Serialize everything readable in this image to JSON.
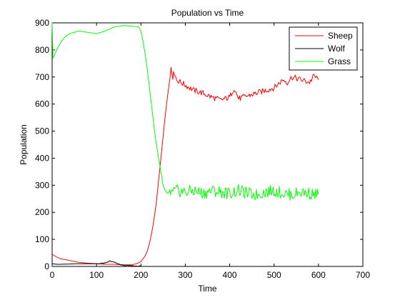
{
  "chart_data": {
    "type": "line",
    "title": "Population vs Time",
    "xlabel": "Time",
    "ylabel": "Population",
    "xlim": [
      0,
      700
    ],
    "ylim": [
      0,
      900
    ],
    "xticks": [
      0,
      100,
      200,
      300,
      400,
      500,
      600,
      700
    ],
    "yticks": [
      0,
      100,
      200,
      300,
      400,
      500,
      600,
      700,
      800,
      900
    ],
    "grid": false,
    "legend_position": "top-right",
    "series": [
      {
        "name": "Sheep",
        "color": "#ff0000",
        "x": [
          0,
          10,
          20,
          40,
          60,
          80,
          100,
          120,
          140,
          160,
          180,
          190,
          200,
          210,
          215,
          220,
          225,
          230,
          235,
          240,
          245,
          250,
          255,
          260,
          265,
          268,
          272,
          275,
          280,
          290,
          300,
          320,
          340,
          360,
          380,
          400,
          410,
          420,
          440,
          460,
          480,
          500,
          520,
          530,
          540,
          560,
          580,
          590,
          600
        ],
        "y": [
          45,
          35,
          28,
          22,
          15,
          12,
          10,
          8,
          8,
          6,
          6,
          10,
          18,
          40,
          60,
          90,
          130,
          180,
          240,
          320,
          400,
          480,
          560,
          630,
          690,
          735,
          700,
          720,
          690,
          680,
          670,
          650,
          640,
          625,
          615,
          625,
          660,
          620,
          630,
          640,
          650,
          660,
          690,
          680,
          700,
          690,
          680,
          705,
          690
        ]
      },
      {
        "name": "Wolf",
        "color": "#000000",
        "x": [
          0,
          10,
          20,
          40,
          60,
          80,
          100,
          120,
          130,
          140,
          150,
          160,
          170,
          180,
          190,
          200
        ],
        "y": [
          10,
          8,
          8,
          9,
          10,
          10,
          10,
          12,
          20,
          15,
          8,
          4,
          3,
          2,
          1,
          0
        ]
      },
      {
        "name": "Grass",
        "color": "#00ff00",
        "x": [
          0,
          2,
          5,
          10,
          20,
          30,
          40,
          60,
          80,
          100,
          120,
          140,
          160,
          180,
          195,
          200,
          205,
          210,
          215,
          220,
          225,
          230,
          235,
          240,
          245,
          250,
          255,
          260,
          265,
          270,
          280,
          300,
          320,
          340,
          360,
          380,
          400,
          420,
          440,
          460,
          480,
          500,
          520,
          540,
          560,
          580,
          600
        ],
        "y": [
          900,
          770,
          780,
          800,
          830,
          850,
          860,
          870,
          865,
          860,
          870,
          885,
          890,
          888,
          885,
          870,
          830,
          780,
          720,
          650,
          580,
          510,
          450,
          400,
          350,
          300,
          280,
          270,
          275,
          270,
          280,
          275,
          280,
          270,
          280,
          275,
          270,
          280,
          270,
          265,
          275,
          280,
          270,
          265,
          275,
          270,
          265
        ]
      }
    ]
  }
}
